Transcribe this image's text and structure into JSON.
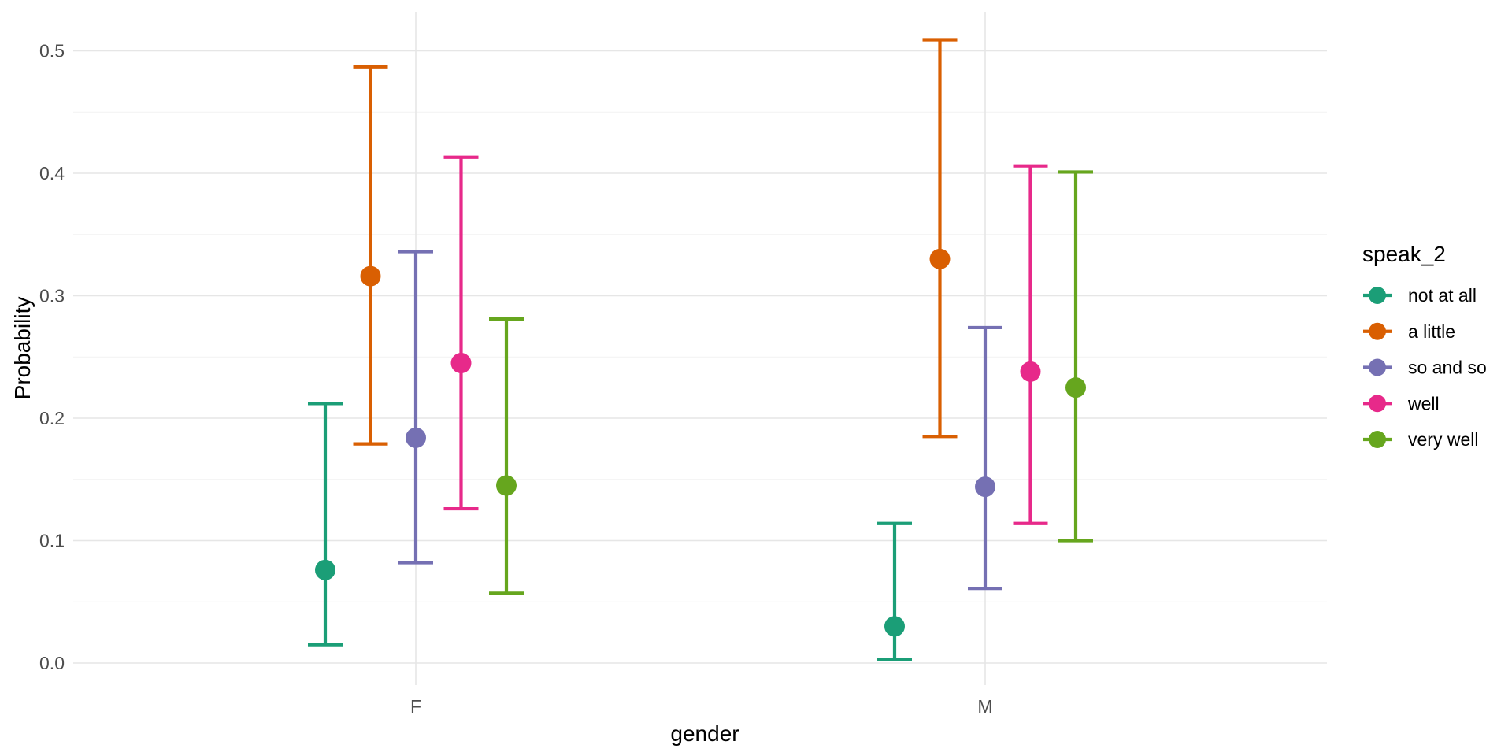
{
  "chart_data": {
    "type": "pointrange",
    "title": "",
    "xlabel": "gender",
    "ylabel": "Probability",
    "legend_title": "speak_2",
    "categories": [
      "F",
      "M"
    ],
    "y_ticks": [
      0.0,
      0.1,
      0.2,
      0.3,
      0.4,
      0.5
    ],
    "y_minor_ticks": [
      0.05,
      0.15,
      0.25,
      0.35,
      0.45
    ],
    "ylim": [
      -0.018,
      0.532
    ],
    "grid": true,
    "legend_position": "right",
    "series": [
      {
        "name": "not at all",
        "color": "#1B9E77",
        "points": [
          {
            "x": "F",
            "y": 0.076,
            "ymin": 0.015,
            "ymax": 0.212
          },
          {
            "x": "M",
            "y": 0.03,
            "ymin": 0.003,
            "ymax": 0.114
          }
        ]
      },
      {
        "name": "a little",
        "color": "#D95F02",
        "points": [
          {
            "x": "F",
            "y": 0.316,
            "ymin": 0.179,
            "ymax": 0.487
          },
          {
            "x": "M",
            "y": 0.33,
            "ymin": 0.185,
            "ymax": 0.509
          }
        ]
      },
      {
        "name": "so and so",
        "color": "#7570B3",
        "points": [
          {
            "x": "F",
            "y": 0.184,
            "ymin": 0.082,
            "ymax": 0.336
          },
          {
            "x": "M",
            "y": 0.144,
            "ymin": 0.061,
            "ymax": 0.274
          }
        ]
      },
      {
        "name": "well",
        "color": "#E7298A",
        "points": [
          {
            "x": "F",
            "y": 0.245,
            "ymin": 0.126,
            "ymax": 0.413
          },
          {
            "x": "M",
            "y": 0.238,
            "ymin": 0.114,
            "ymax": 0.406
          }
        ]
      },
      {
        "name": "very well",
        "color": "#66A61E",
        "points": [
          {
            "x": "F",
            "y": 0.145,
            "ymin": 0.057,
            "ymax": 0.281
          },
          {
            "x": "M",
            "y": 0.225,
            "ymin": 0.1,
            "ymax": 0.401
          }
        ]
      }
    ],
    "style": {
      "background": "#FFFFFF",
      "major_grid_color": "#E6E6E6",
      "minor_grid_color": "#F2F2F2",
      "tick_text_color": "#4D4D4D",
      "title_text_color": "#000000"
    }
  }
}
